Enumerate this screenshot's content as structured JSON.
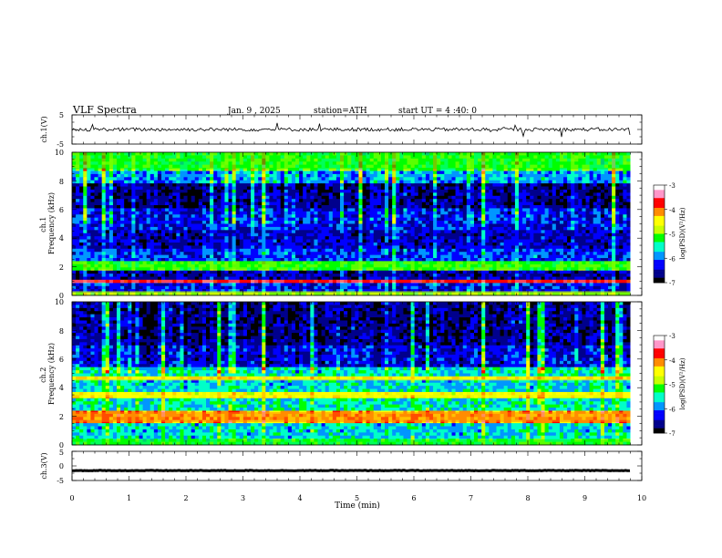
{
  "header": {
    "title": "VLF Spectra",
    "date": "Jan. 9 , 2025",
    "station": "station=ATH",
    "start_ut": "start UT = 4 :40: 0"
  },
  "chart_data": [
    {
      "type": "line",
      "panel": "ch1-waveform",
      "ylabel": "ch.1(V)",
      "xlim": [
        0,
        10
      ],
      "ylim": [
        -5,
        5
      ],
      "y_ticks": [
        "5",
        "-5"
      ],
      "baseline": 0,
      "amplitude_approx": 1.2,
      "color": "#000000"
    },
    {
      "type": "heatmap",
      "panel": "ch1-spectrogram",
      "ylabel": "ch.1\nFrequency (kHz)",
      "xlim": [
        0,
        10
      ],
      "ylim": [
        0,
        10
      ],
      "y_ticks": [
        "0",
        "2",
        "4",
        "6",
        "8",
        "10"
      ],
      "data_extent_min": 9.8,
      "bands": [
        {
          "from": 0,
          "to": 0.3,
          "level": -5.0
        },
        {
          "from": 0.3,
          "to": 0.9,
          "level": -6.3
        },
        {
          "from": 0.9,
          "to": 1.1,
          "level": -3.6
        },
        {
          "from": 1.1,
          "to": 1.8,
          "level": -6.6
        },
        {
          "from": 1.8,
          "to": 2.4,
          "level": -5.1
        },
        {
          "from": 2.4,
          "to": 3.2,
          "level": -6.2
        },
        {
          "from": 3.2,
          "to": 4.6,
          "level": -6.5
        },
        {
          "from": 4.6,
          "to": 6.0,
          "level": -6.3
        },
        {
          "from": 6.0,
          "to": 7.8,
          "level": -6.7
        },
        {
          "from": 7.8,
          "to": 8.8,
          "level": -5.9
        },
        {
          "from": 8.8,
          "to": 10,
          "level": -5.2
        }
      ],
      "colorbar": {
        "label": "log(PSD)(V²/Hz)",
        "min": -7,
        "max": -3,
        "ticks": [
          "-3",
          "-4",
          "-5",
          "-6",
          "-7"
        ]
      }
    },
    {
      "type": "heatmap",
      "panel": "ch2-spectrogram",
      "ylabel": "ch.2\nFrequency (kHz)",
      "xlim": [
        0,
        10
      ],
      "ylim": [
        0,
        10
      ],
      "y_ticks": [
        "0",
        "2",
        "4",
        "6",
        "8",
        "10"
      ],
      "data_extent_min": 9.8,
      "bands": [
        {
          "from": 0,
          "to": 0.4,
          "level": -5.3
        },
        {
          "from": 0.4,
          "to": 1.6,
          "level": -5.7
        },
        {
          "from": 1.6,
          "to": 2.3,
          "level": -4.2
        },
        {
          "from": 2.3,
          "to": 3.3,
          "level": -5.6
        },
        {
          "from": 3.3,
          "to": 3.7,
          "level": -4.6
        },
        {
          "from": 3.7,
          "to": 4.5,
          "level": -5.7
        },
        {
          "from": 4.5,
          "to": 4.8,
          "level": -4.4
        },
        {
          "from": 4.8,
          "to": 5.5,
          "level": -5.6
        },
        {
          "from": 5.5,
          "to": 7.0,
          "level": -6.4
        },
        {
          "from": 7.0,
          "to": 10,
          "level": -6.7
        }
      ],
      "colorbar": {
        "label": "log(PSD)(V²/Hz)",
        "min": -7,
        "max": -3,
        "ticks": [
          "-3",
          "-4",
          "-5",
          "-6",
          "-7"
        ]
      }
    },
    {
      "type": "line",
      "panel": "ch3-waveform",
      "ylabel": "ch.3(V)",
      "xlim": [
        0,
        10
      ],
      "ylim": [
        -5,
        5
      ],
      "y_ticks": [
        "5",
        "0",
        "-5"
      ],
      "baseline": -1.6,
      "amplitude_approx": 0.2,
      "color": "#000000"
    }
  ],
  "x_axis": {
    "label": "Time (min)",
    "ticks": [
      "0",
      "1",
      "2",
      "3",
      "4",
      "5",
      "6",
      "7",
      "8",
      "9",
      "10"
    ]
  },
  "colors": {
    "colormap": [
      "#000000",
      "#00008c",
      "#0000ff",
      "#0096ff",
      "#00ffc8",
      "#00ff00",
      "#c8ff00",
      "#ffff00",
      "#ff8c00",
      "#ff0000",
      "#ff96c8",
      "#ffffff"
    ]
  }
}
